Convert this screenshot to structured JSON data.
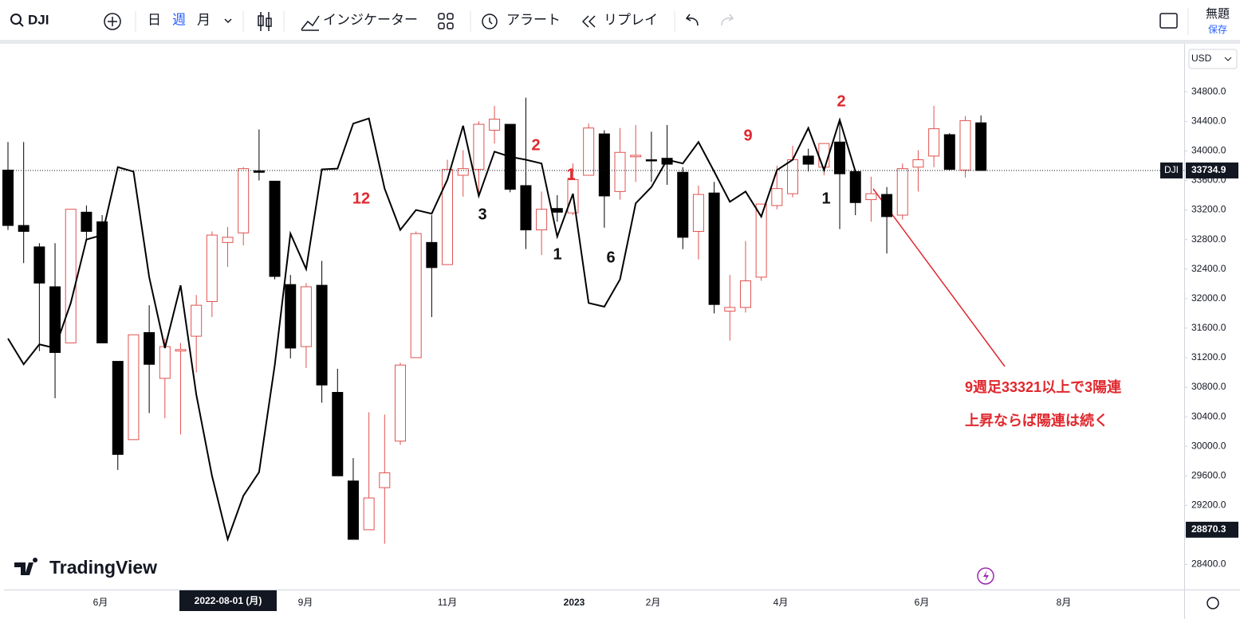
{
  "toolbar": {
    "symbol": "DJI",
    "intervals": [
      "日",
      "週",
      "月"
    ],
    "indicators": "インジケーター",
    "alert": "アラート",
    "replay": "リプレイ",
    "layout_name": "無題",
    "save": "保存"
  },
  "currency": "USD",
  "logo": "TradingView",
  "chart_data": {
    "type": "candlestick",
    "up_color": "#e0524f",
    "down_color": "#000000",
    "line_color": "#000000",
    "open": [
      33740,
      32990,
      32700,
      32160,
      31400,
      33170,
      33040,
      31150,
      30090,
      31540,
      30920,
      31290,
      31490,
      31960,
      32760,
      32890,
      33730,
      33590,
      32190,
      31350,
      32180,
      30730,
      29530,
      28870,
      29440,
      30070,
      31200,
      32760,
      32460,
      33670,
      33750,
      34280,
      34360,
      33530,
      32930,
      33220,
      33160,
      33670,
      34230,
      33450,
      33920,
      33880,
      33900,
      33710,
      32910,
      33430,
      31830,
      31880,
      32290,
      33260,
      33420,
      33930,
      33780,
      34120,
      33720,
      33340,
      33410,
      33130,
      33780,
      33930,
      34220,
      33740,
      34380
    ],
    "high": [
      34120,
      34120,
      32750,
      32750,
      33210,
      33260,
      33130,
      31150,
      31510,
      31910,
      31460,
      31400,
      32050,
      32910,
      32970,
      33780,
      34290,
      33590,
      32320,
      32210,
      32510,
      31050,
      29840,
      30460,
      30430,
      31130,
      32910,
      33130,
      33880,
      34010,
      34400,
      34610,
      34360,
      34720,
      33450,
      33400,
      33830,
      34370,
      34280,
      34310,
      34350,
      34260,
      34350,
      33780,
      33530,
      33580,
      32320,
      32780,
      33280,
      33800,
      34070,
      34030,
      34100,
      34420,
      33740,
      33650,
      33510,
      33830,
      34010,
      34610,
      34240,
      34470,
      34480
    ],
    "low": [
      32930,
      32480,
      31290,
      30650,
      31400,
      32800,
      31400,
      29680,
      30090,
      30450,
      30380,
      30160,
      31000,
      31750,
      32430,
      32720,
      33600,
      32260,
      31190,
      31060,
      30590,
      29600,
      28740,
      28870,
      28680,
      30020,
      31200,
      31750,
      32460,
      33380,
      33400,
      34100,
      33440,
      32670,
      32590,
      33040,
      33130,
      33670,
      32960,
      33340,
      33580,
      33580,
      33540,
      32670,
      32530,
      31800,
      31430,
      31810,
      32240,
      33210,
      33370,
      33720,
      33670,
      32940,
      33130,
      33040,
      32610,
      33070,
      33450,
      33780,
      33740,
      33640,
      33734.9
    ],
    "close": [
      32990,
      32910,
      32210,
      31270,
      33210,
      32910,
      31400,
      29890,
      31510,
      31110,
      31350,
      31310,
      31910,
      32860,
      32830,
      33760,
      33710,
      32300,
      31330,
      32160,
      30830,
      29600,
      28740,
      29300,
      29640,
      31100,
      32880,
      32420,
      33750,
      33760,
      34360,
      34430,
      33480,
      32930,
      33210,
      33170,
      33610,
      34310,
      33390,
      33980,
      33940,
      33870,
      33820,
      32830,
      33410,
      31920,
      31880,
      32240,
      33280,
      33490,
      33880,
      33820,
      34100,
      33690,
      33300,
      33420,
      33110,
      33760,
      33880,
      34300,
      33750,
      34410,
      33734.9
    ],
    "line": {
      "values": [
        31460,
        31110,
        31380,
        31330,
        31940,
        32800,
        32860,
        33780,
        33720,
        32290,
        31330,
        32180,
        30700,
        29600,
        28740,
        29330,
        29650,
        31100,
        32880,
        32400,
        33750,
        33760,
        34370,
        34440,
        33490,
        32930,
        33200,
        33150,
        33610,
        34340,
        33390,
        33990,
        33920,
        33880,
        33830,
        32840,
        33420,
        31940,
        31890,
        32260,
        33290,
        33510,
        33880,
        33830,
        34120,
        33720,
        33310,
        33450,
        33110,
        33740,
        33880,
        34310,
        33740,
        34420,
        33720,
        null,
        null,
        null,
        null,
        null,
        null,
        null,
        null
      ]
    },
    "ylim": [
      28060,
      35450
    ],
    "yticks": [
      {
        "value": 28400,
        "label": "28400.0"
      },
      {
        "value": 28800,
        "label": "28800.0"
      },
      {
        "value": 29200,
        "label": "29200.0"
      },
      {
        "value": 29600,
        "label": "29600.0"
      },
      {
        "value": 30000,
        "label": "30000.0"
      },
      {
        "value": 30400,
        "label": "30400.0"
      },
      {
        "value": 30800,
        "label": "30800.0"
      },
      {
        "value": 31200,
        "label": "31200.0"
      },
      {
        "value": 31600,
        "label": "31600.0"
      },
      {
        "value": 32000,
        "label": "32000.0"
      },
      {
        "value": 32400,
        "label": "32400.0"
      },
      {
        "value": 32800,
        "label": "32800.0"
      },
      {
        "value": 33200,
        "label": "33200.0"
      },
      {
        "value": 33600,
        "label": "33600.0"
      },
      {
        "value": 34000,
        "label": "34000.0"
      },
      {
        "value": 34400,
        "label": "34400.0"
      },
      {
        "value": 34800,
        "label": "34800.0"
      }
    ],
    "grid": false,
    "last_price": {
      "name": "DJI",
      "value": 33734.9
    },
    "marker_price": 28870.3,
    "x_labels": [
      "6月",
      "9月",
      "11月",
      "2023",
      "2月",
      "4月",
      "6月",
      "8月"
    ],
    "crosshair_label": "2022-08-01 (月)",
    "annotations": [
      {
        "text": "12",
        "color": "#e0282e"
      },
      {
        "text": "2",
        "color": "#e0282e"
      },
      {
        "text": "1",
        "color": "#e0282e"
      },
      {
        "text": "9",
        "color": "#e0282e"
      },
      {
        "text": "2",
        "color": "#e0282e"
      },
      {
        "text": "3",
        "color": "#111111"
      },
      {
        "text": "1",
        "color": "#111111"
      },
      {
        "text": "6",
        "color": "#111111"
      },
      {
        "text": "1",
        "color": "#111111"
      }
    ],
    "note": [
      "9週足33321以上で3陽連",
      "上昇ならば陽連は続く"
    ]
  }
}
